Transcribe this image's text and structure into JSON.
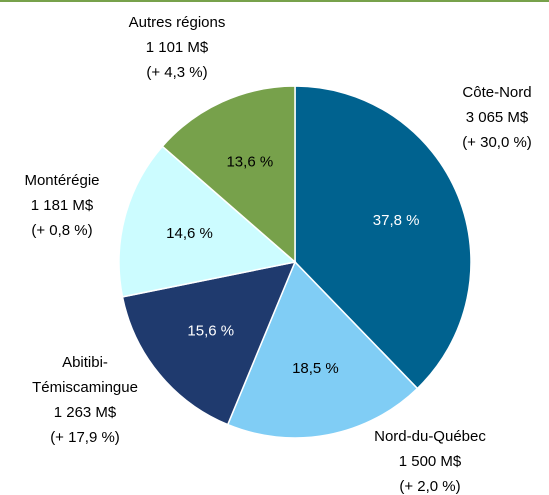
{
  "chart_data": {
    "type": "pie",
    "categories": [
      "Côte-Nord",
      "Nord-du-Québec",
      "Abitibi-Témiscamingue",
      "Montérégie",
      "Autres régions"
    ],
    "values": [
      37.8,
      18.5,
      15.6,
      14.6,
      13.6
    ],
    "value_labels": [
      "37,8 %",
      "18,5 %",
      "15,6 %",
      "14,6 %",
      "13,6 %"
    ],
    "amount_labels": [
      "3 065 M$",
      "1 500 M$",
      "1 263 M$",
      "1 181 M$",
      "1 101 M$"
    ],
    "change_labels": [
      "(+ 30,0 %)",
      "(+ 2,0 %)",
      "(+ 17,9 %)",
      "(+ 0,8 %)",
      "(+ 4,3 %)"
    ],
    "colors": [
      "#00628f",
      "#80cdf5",
      "#1f3a6e",
      "#ccfcff",
      "#77a14b"
    ],
    "label_colors": [
      "#ffffff",
      "#000000",
      "#ffffff",
      "#000000",
      "#000000"
    ]
  }
}
